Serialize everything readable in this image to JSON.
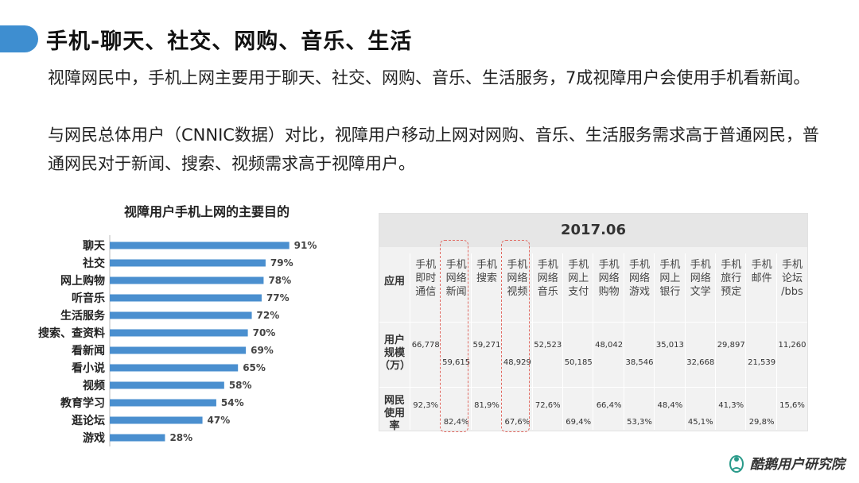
{
  "heading": "手机-聊天、社交、网购、音乐、生活",
  "paragraphs": [
    "视障网民中，手机上网主要用于聊天、社交、网购、音乐、生活服务，7成视障用户会使用手机看新闻。",
    "与网民总体用户（CNNIC数据）对比，视障用户移动上网对网购、音乐、生活服务需求高于普通网民，普通网民对于新闻、搜索、视频需求高于视障用户。"
  ],
  "chart_data": [
    {
      "type": "bar",
      "orientation": "horizontal",
      "title": "视障用户手机上网的主要目的",
      "categories": [
        "聊天",
        "社交",
        "网上购物",
        "听音乐",
        "生活服务",
        "搜索、查资料",
        "看新闻",
        "看小说",
        "视频",
        "教育学习",
        "逛论坛",
        "游戏"
      ],
      "values": [
        91,
        79,
        78,
        77,
        72,
        70,
        69,
        65,
        58,
        54,
        47,
        28
      ],
      "value_labels": [
        "91%",
        "79%",
        "78%",
        "77%",
        "72%",
        "70%",
        "69%",
        "65%",
        "58%",
        "54%",
        "47%",
        "28%"
      ],
      "bar_color": "#4a8fcf",
      "xlim": [
        0,
        100
      ]
    },
    {
      "type": "table",
      "title": "2017.06",
      "corner_label": "应用",
      "columns": [
        "手机\n即时\n通信",
        "手机\n网络\n新闻",
        "手机\n搜索",
        "手机\n网络\n视频",
        "手机\n网络\n音乐",
        "手机\n网上\n支付",
        "手机\n网络\n购物",
        "手机\n网络\n游戏",
        "手机\n网上\n银行",
        "手机\n网络\n文学",
        "手机\n旅行\n预定",
        "手机\n邮件",
        "手机\n论坛\n/bbs"
      ],
      "rows": [
        {
          "label": "用户\n规模\n（万）",
          "values": [
            "66,778",
            "59,615",
            "59,271",
            "48,929",
            "52,523",
            "50,185",
            "48,042",
            "38,546",
            "35,013",
            "32,668",
            "29,897",
            "21,539",
            "11,260"
          ]
        },
        {
          "label": "网民\n使用\n率",
          "values": [
            "92,3%",
            "82,4%",
            "81,9%",
            "67,6%",
            "72,6%",
            "69,4%",
            "66,4%",
            "53,3%",
            "48,4%",
            "45,1%",
            "41,3%",
            "29,8%",
            "15,6%"
          ]
        }
      ],
      "highlighted_columns": [
        "手机\n网络\n新闻",
        "手机\n网络\n视频"
      ],
      "highlight_color": "#e06a62"
    }
  ],
  "logo": {
    "text": "酷鹅用户研究院",
    "icon": "penguin-logo-icon",
    "color": "#2a9a8a"
  }
}
